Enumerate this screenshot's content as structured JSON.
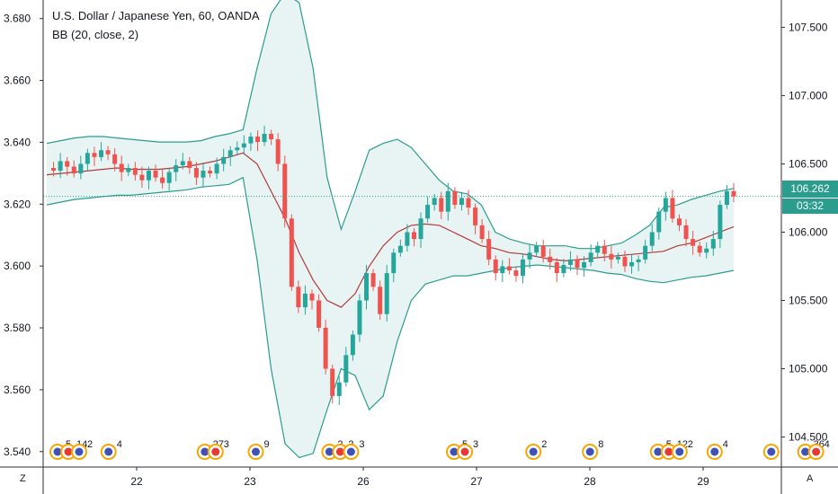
{
  "legend": {
    "title": "U.S. Dollar / Japanese Yen, 60, OANDA",
    "indicator": "BB (20, close, 2)"
  },
  "colors": {
    "up": "#26a69a",
    "down": "#ef5350",
    "band": "#2a9d8f",
    "band_fill": "#e8f4f3",
    "basis": "#b13a3a",
    "price_line": "#2a9d8f",
    "axis": "#2a2e39"
  },
  "price_badge": {
    "price": "106.262",
    "countdown": "03:32"
  },
  "corner_labels": {
    "left": "Z",
    "right": "A"
  },
  "events": [
    {
      "day_pos": 0.0,
      "labels": [
        "5",
        "14",
        "2"
      ]
    },
    {
      "day_pos": 0.45,
      "labels": [
        "4"
      ]
    },
    {
      "day_pos": 1.3,
      "labels": [
        "27",
        "3"
      ]
    },
    {
      "day_pos": 1.75,
      "labels": [
        "9"
      ]
    },
    {
      "day_pos": 2.4,
      "labels": [
        "2",
        "2",
        "3"
      ]
    },
    {
      "day_pos": 3.5,
      "labels": [
        "5",
        "3"
      ]
    },
    {
      "day_pos": 4.2,
      "labels": [
        "2"
      ]
    },
    {
      "day_pos": 4.7,
      "labels": [
        "8"
      ]
    },
    {
      "day_pos": 5.3,
      "labels": [
        "5",
        "12",
        "2"
      ]
    },
    {
      "day_pos": 5.8,
      "labels": [
        "4"
      ]
    },
    {
      "day_pos": 6.3,
      "labels": []
    },
    {
      "day_pos": 6.6,
      "labels": [
        "36",
        "4"
      ]
    }
  ],
  "chart_data": {
    "type": "candlestick",
    "title": "U.S. Dollar / Japanese Yen, 60, OANDA",
    "x_ticks": [
      "22",
      "23",
      "26",
      "27",
      "28",
      "29"
    ],
    "y_left": {
      "ticks": [
        "3.680",
        "3.660",
        "3.640",
        "3.620",
        "3.600",
        "3.580",
        "3.560",
        "3.540"
      ],
      "range": [
        3.535,
        3.686
      ]
    },
    "y_right": {
      "ticks": [
        "107.500",
        "107.000",
        "106.500",
        "106.000",
        "105.500",
        "105.000",
        "104.500"
      ],
      "range": [
        104.28,
        107.7
      ]
    },
    "last_price": 106.262,
    "series": [
      {
        "name": "price",
        "points": [
          106.47,
          106.45,
          106.52,
          106.48,
          106.43,
          106.5,
          106.58,
          106.55,
          106.6,
          106.57,
          106.5,
          106.44,
          106.47,
          106.42,
          106.38,
          106.45,
          106.4,
          106.36,
          106.44,
          106.49,
          106.52,
          106.47,
          106.4,
          106.45,
          106.43,
          106.5,
          106.55,
          106.6,
          106.62,
          106.65,
          106.7,
          106.66,
          106.72,
          106.68,
          106.5,
          106.1,
          105.6,
          105.45,
          105.55,
          105.5,
          105.3,
          105.0,
          104.8,
          104.9,
          105.1,
          105.25,
          105.5,
          105.7,
          105.6,
          105.4,
          105.7,
          105.85,
          105.9,
          106.0,
          105.95,
          106.1,
          106.2,
          106.25,
          106.15,
          106.3,
          106.2,
          106.25,
          106.18,
          106.05,
          105.95,
          105.8,
          105.7,
          105.75,
          105.72,
          105.68,
          105.8,
          105.85,
          105.9,
          105.82,
          105.78,
          105.7,
          105.76,
          105.8,
          105.74,
          105.78,
          105.85,
          105.9,
          105.84,
          105.8,
          105.82,
          105.75,
          105.78,
          105.8,
          105.9,
          106.0,
          106.15,
          106.25,
          106.1,
          106.05,
          105.95,
          105.9,
          105.85,
          105.88,
          105.95,
          106.2,
          106.3,
          106.262
        ]
      },
      {
        "name": "BB basis",
        "points": [
          106.42,
          106.43,
          106.44,
          106.45,
          106.46,
          106.47,
          106.46,
          106.46,
          106.46,
          106.47,
          106.48,
          106.5,
          106.52,
          106.55,
          106.58,
          106.5,
          106.3,
          106.1,
          105.85,
          105.65,
          105.5,
          105.45,
          105.55,
          105.75,
          105.9,
          106.0,
          106.05,
          106.06,
          106.05,
          106.0,
          105.95,
          105.9,
          105.88,
          105.85,
          105.84,
          105.82,
          105.8,
          105.79,
          105.8,
          105.81,
          105.82,
          105.83,
          105.84,
          105.85,
          105.86,
          105.9,
          105.92,
          105.96,
          106.0,
          106.04
        ]
      },
      {
        "name": "BB upper",
        "points": [
          106.65,
          106.67,
          106.69,
          106.7,
          106.7,
          106.69,
          106.68,
          106.67,
          106.66,
          106.66,
          106.66,
          106.67,
          106.7,
          106.72,
          106.75,
          107.2,
          107.6,
          107.75,
          107.68,
          107.2,
          106.4,
          106.02,
          106.3,
          106.6,
          106.65,
          106.68,
          106.62,
          106.5,
          106.38,
          106.3,
          106.28,
          106.2,
          106.0,
          105.95,
          105.92,
          105.9,
          105.9,
          105.9,
          105.88,
          105.88,
          105.9,
          105.92,
          105.98,
          106.05,
          106.18,
          106.2,
          106.24,
          106.27,
          106.3,
          106.32
        ]
      },
      {
        "name": "BB lower",
        "points": [
          106.2,
          106.22,
          106.24,
          106.25,
          106.26,
          106.27,
          106.27,
          106.28,
          106.29,
          106.3,
          106.31,
          106.33,
          106.34,
          106.35,
          106.4,
          105.8,
          105.0,
          104.45,
          104.35,
          104.38,
          104.7,
          105.0,
          104.95,
          104.7,
          104.8,
          105.2,
          105.5,
          105.62,
          105.65,
          105.68,
          105.68,
          105.7,
          105.72,
          105.74,
          105.75,
          105.76,
          105.75,
          105.74,
          105.73,
          105.72,
          105.7,
          105.69,
          105.66,
          105.64,
          105.63,
          105.65,
          105.67,
          105.68,
          105.7,
          105.72
        ]
      }
    ]
  }
}
